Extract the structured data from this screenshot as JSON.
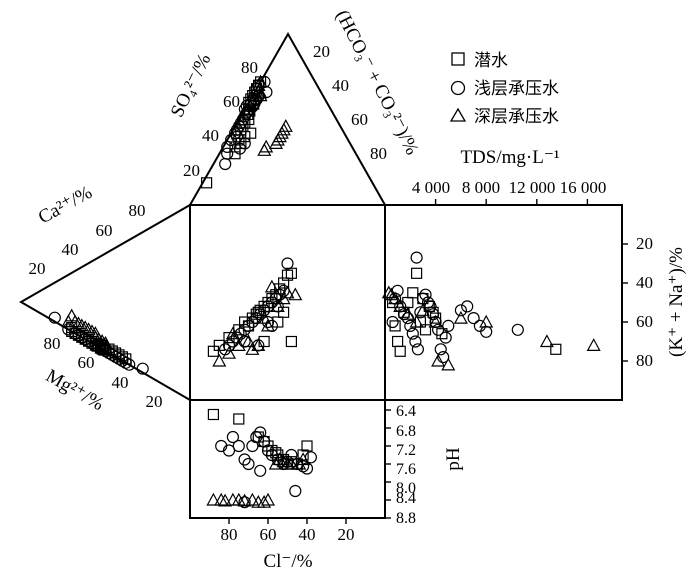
{
  "chart_data": {
    "type": "scatter",
    "legend": {
      "placement": "top-right",
      "entries": [
        {
          "name": "潜水",
          "marker": "square"
        },
        {
          "name": "浅层承压水",
          "marker": "circle"
        },
        {
          "name": "深层承压水",
          "marker": "triangle"
        }
      ]
    },
    "panels": {
      "so4_triangle": {
        "left_axis_label": "SO₄²⁻/%",
        "left_ticks": [
          "20",
          "40",
          "60",
          "80"
        ],
        "right_axis_label": "(HCO₃⁻ + CO₃²⁻)/%",
        "right_ticks": [
          "20",
          "40",
          "60",
          "80"
        ]
      },
      "ca_triangle": {
        "top_axis_label": "Ca²⁺/%",
        "top_ticks": [
          "20",
          "40",
          "60",
          "80"
        ],
        "bottom_axis_label": "Mg²⁺/%",
        "bottom_ticks": [
          "80",
          "60",
          "40",
          "20"
        ]
      },
      "center_square": {
        "x_reversed": true
      },
      "tds_panel": {
        "x_axis_label": "TDS/mg·L⁻¹",
        "x_ticks": [
          "4 000",
          "8 000",
          "12 000",
          "16 000"
        ],
        "y_axis_label": "(K⁺ + Na⁺)/%",
        "y_ticks": [
          "20",
          "40",
          "60",
          "80"
        ]
      },
      "ph_panel": {
        "x_axis_label": "Cl⁻/%",
        "x_ticks": [
          "80",
          "60",
          "40",
          "20"
        ],
        "y_axis_label": "pH",
        "y_ticks": [
          "6.4",
          "6.8",
          "7.2",
          "7.6",
          "8.0",
          "8.4",
          "8.8"
        ]
      }
    },
    "series": [
      {
        "name": "潜水",
        "marker": "square",
        "so4": [
          [
            13,
            85
          ],
          [
            30,
            62
          ],
          [
            50,
            45
          ],
          [
            53,
            44
          ],
          [
            55,
            42
          ],
          [
            58,
            40
          ],
          [
            60,
            40
          ],
          [
            62,
            38
          ],
          [
            64,
            36
          ],
          [
            66,
            34
          ],
          [
            68,
            32
          ],
          [
            70,
            30
          ],
          [
            72,
            28
          ],
          [
            46,
            50
          ],
          [
            48,
            48
          ],
          [
            44,
            52
          ],
          [
            42,
            48
          ],
          [
            40,
            52
          ],
          [
            56,
            42
          ],
          [
            59,
            38
          ],
          [
            61,
            37
          ],
          [
            36,
            56
          ],
          [
            38,
            56
          ],
          [
            34,
            60
          ]
        ],
        "cation": [
          [
            30,
            70
          ],
          [
            34,
            66
          ],
          [
            38,
            62
          ],
          [
            40,
            60
          ],
          [
            42,
            58
          ],
          [
            44,
            56
          ],
          [
            46,
            52
          ],
          [
            48,
            52
          ],
          [
            50,
            48
          ],
          [
            52,
            46
          ],
          [
            54,
            44
          ],
          [
            56,
            42
          ],
          [
            36,
            64
          ],
          [
            32,
            68
          ],
          [
            45,
            55
          ],
          [
            47,
            53
          ],
          [
            49,
            51
          ],
          [
            28,
            70
          ],
          [
            60,
            38
          ],
          [
            58,
            40
          ]
        ],
        "square": [
          [
            88,
            75
          ],
          [
            85,
            72
          ],
          [
            80,
            68
          ],
          [
            75,
            64
          ],
          [
            72,
            60
          ],
          [
            68,
            58
          ],
          [
            65,
            55
          ],
          [
            62,
            52
          ],
          [
            60,
            50
          ],
          [
            58,
            48
          ],
          [
            56,
            46
          ],
          [
            54,
            43
          ],
          [
            52,
            40
          ],
          [
            50,
            36
          ],
          [
            48,
            35
          ],
          [
            52,
            55
          ],
          [
            55,
            60
          ],
          [
            48,
            70
          ],
          [
            62,
            70
          ],
          [
            70,
            62
          ],
          [
            66,
            56
          ],
          [
            64,
            54
          ]
        ],
        "tds": [
          [
            600,
            50
          ],
          [
            800,
            62
          ],
          [
            1000,
            70
          ],
          [
            1200,
            75
          ],
          [
            1500,
            55
          ],
          [
            1800,
            50
          ],
          [
            2200,
            45
          ],
          [
            2500,
            35
          ],
          [
            3000,
            48
          ],
          [
            3500,
            52
          ],
          [
            4000,
            58
          ],
          [
            4500,
            66
          ],
          [
            3800,
            55
          ],
          [
            2800,
            60
          ],
          [
            3200,
            64
          ],
          [
            13500,
            74
          ]
        ],
        "ph": [
          [
            88,
            6.5
          ],
          [
            75,
            6.6
          ],
          [
            65,
            7.0
          ],
          [
            60,
            7.2
          ],
          [
            58,
            7.3
          ],
          [
            55,
            7.4
          ],
          [
            52,
            7.5
          ],
          [
            50,
            7.6
          ],
          [
            48,
            7.55
          ],
          [
            45,
            7.6
          ],
          [
            42,
            7.4
          ],
          [
            40,
            7.2
          ],
          [
            62,
            7.1
          ],
          [
            56,
            7.35
          ]
        ]
      },
      {
        "name": "浅层承压水",
        "marker": "circle",
        "so4": [
          [
            24,
            70
          ],
          [
            30,
            66
          ],
          [
            34,
            64
          ],
          [
            38,
            60
          ],
          [
            40,
            56
          ],
          [
            42,
            56
          ],
          [
            44,
            54
          ],
          [
            46,
            52
          ],
          [
            48,
            50
          ],
          [
            50,
            48
          ],
          [
            52,
            46
          ],
          [
            54,
            44
          ],
          [
            56,
            44
          ],
          [
            58,
            42
          ],
          [
            60,
            42
          ],
          [
            62,
            40
          ],
          [
            64,
            38
          ],
          [
            66,
            36
          ],
          [
            68,
            32
          ],
          [
            70,
            30
          ],
          [
            66,
            28
          ],
          [
            72,
            26
          ],
          [
            36,
            54
          ],
          [
            33,
            58
          ]
        ],
        "cation": [
          [
            18,
            80
          ],
          [
            28,
            72
          ],
          [
            32,
            68
          ],
          [
            36,
            64
          ],
          [
            40,
            60
          ],
          [
            42,
            58
          ],
          [
            44,
            56
          ],
          [
            46,
            54
          ],
          [
            48,
            52
          ],
          [
            50,
            50
          ],
          [
            52,
            48
          ],
          [
            54,
            46
          ],
          [
            56,
            44
          ],
          [
            58,
            42
          ],
          [
            60,
            40
          ],
          [
            64,
            36
          ],
          [
            62,
            38
          ],
          [
            38,
            62
          ],
          [
            34,
            66
          ],
          [
            45,
            53
          ],
          [
            47,
            51
          ],
          [
            70,
            28
          ]
        ],
        "square": [
          [
            82,
            74
          ],
          [
            80,
            72
          ],
          [
            78,
            70
          ],
          [
            76,
            68
          ],
          [
            74,
            66
          ],
          [
            72,
            64
          ],
          [
            70,
            62
          ],
          [
            68,
            60
          ],
          [
            66,
            58
          ],
          [
            64,
            56
          ],
          [
            62,
            54
          ],
          [
            60,
            52
          ],
          [
            58,
            50
          ],
          [
            56,
            48
          ],
          [
            54,
            46
          ],
          [
            52,
            44
          ],
          [
            50,
            30
          ],
          [
            65,
            72
          ],
          [
            72,
            70
          ],
          [
            60,
            60
          ],
          [
            58,
            62
          ],
          [
            55,
            52
          ]
        ],
        "tds": [
          [
            600,
            60
          ],
          [
            800,
            48
          ],
          [
            1000,
            44
          ],
          [
            1200,
            52
          ],
          [
            1500,
            56
          ],
          [
            1800,
            58
          ],
          [
            2000,
            62
          ],
          [
            2200,
            66
          ],
          [
            2400,
            70
          ],
          [
            2600,
            74
          ],
          [
            2800,
            55
          ],
          [
            3000,
            48
          ],
          [
            3200,
            46
          ],
          [
            3400,
            50
          ],
          [
            3600,
            52
          ],
          [
            3800,
            56
          ],
          [
            4000,
            60
          ],
          [
            4200,
            64
          ],
          [
            4400,
            74
          ],
          [
            4600,
            78
          ],
          [
            4800,
            68
          ],
          [
            5000,
            62
          ],
          [
            6000,
            54
          ],
          [
            6500,
            52
          ],
          [
            7000,
            58
          ],
          [
            7500,
            62
          ],
          [
            8000,
            65
          ],
          [
            2500,
            27
          ],
          [
            10500,
            64
          ]
        ],
        "ph": [
          [
            84,
            7.2
          ],
          [
            80,
            7.3
          ],
          [
            78,
            7.0
          ],
          [
            75,
            7.2
          ],
          [
            72,
            7.5
          ],
          [
            70,
            7.6
          ],
          [
            68,
            7.2
          ],
          [
            66,
            7.0
          ],
          [
            64,
            6.9
          ],
          [
            62,
            7.1
          ],
          [
            60,
            7.3
          ],
          [
            58,
            7.4
          ],
          [
            55,
            7.5
          ],
          [
            52,
            7.6
          ],
          [
            50,
            7.55
          ],
          [
            48,
            7.4
          ],
          [
            45,
            7.6
          ],
          [
            42,
            7.65
          ],
          [
            40,
            7.7
          ],
          [
            38,
            7.45
          ],
          [
            46,
            8.2
          ],
          [
            72,
            8.45
          ],
          [
            64,
            7.75
          ]
        ]
      },
      {
        "name": "深层承压水",
        "marker": "triangle",
        "so4": [
          [
            40,
            34
          ],
          [
            38,
            36
          ],
          [
            36,
            38
          ],
          [
            42,
            32
          ],
          [
            44,
            30
          ],
          [
            46,
            28
          ],
          [
            62,
            38
          ],
          [
            65,
            36
          ],
          [
            68,
            34
          ],
          [
            64,
            32
          ],
          [
            70,
            30
          ],
          [
            72,
            28
          ],
          [
            34,
            44
          ],
          [
            32,
            46
          ]
        ],
        "cation": [
          [
            28,
            66
          ],
          [
            30,
            64
          ],
          [
            32,
            62
          ],
          [
            34,
            60
          ],
          [
            36,
            58
          ],
          [
            38,
            56
          ],
          [
            40,
            56
          ],
          [
            42,
            54
          ],
          [
            44,
            52
          ],
          [
            22,
            70
          ],
          [
            26,
            68
          ],
          [
            46,
            50
          ],
          [
            48,
            50
          ],
          [
            24,
            72
          ]
        ],
        "square": [
          [
            85,
            80
          ],
          [
            80,
            76
          ],
          [
            75,
            72
          ],
          [
            70,
            70
          ],
          [
            65,
            72
          ],
          [
            60,
            62
          ],
          [
            55,
            52
          ],
          [
            52,
            48
          ],
          [
            50,
            45
          ],
          [
            46,
            46
          ],
          [
            58,
            42
          ],
          [
            62,
            58
          ],
          [
            68,
            74
          ],
          [
            78,
            66
          ]
        ],
        "tds": [
          [
            300,
            45
          ],
          [
            500,
            46
          ],
          [
            800,
            48
          ],
          [
            1200,
            52
          ],
          [
            1800,
            56
          ],
          [
            2500,
            60
          ],
          [
            3000,
            54
          ],
          [
            4000,
            60
          ],
          [
            6000,
            58
          ],
          [
            8000,
            60
          ],
          [
            5000,
            82
          ],
          [
            4200,
            80
          ],
          [
            12800,
            70
          ],
          [
            16500,
            72
          ]
        ],
        "ph": [
          [
            88,
            8.4
          ],
          [
            84,
            8.4
          ],
          [
            82,
            8.42
          ],
          [
            78,
            8.4
          ],
          [
            75,
            8.4
          ],
          [
            72,
            8.42
          ],
          [
            68,
            8.4
          ],
          [
            65,
            8.45
          ],
          [
            62,
            8.45
          ],
          [
            60,
            8.4
          ],
          [
            56,
            7.6
          ],
          [
            54,
            7.5
          ],
          [
            52,
            7.55
          ],
          [
            50,
            7.6
          ],
          [
            48,
            7.6
          ],
          [
            44,
            7.6
          ],
          [
            42,
            7.5
          ]
        ]
      }
    ]
  }
}
